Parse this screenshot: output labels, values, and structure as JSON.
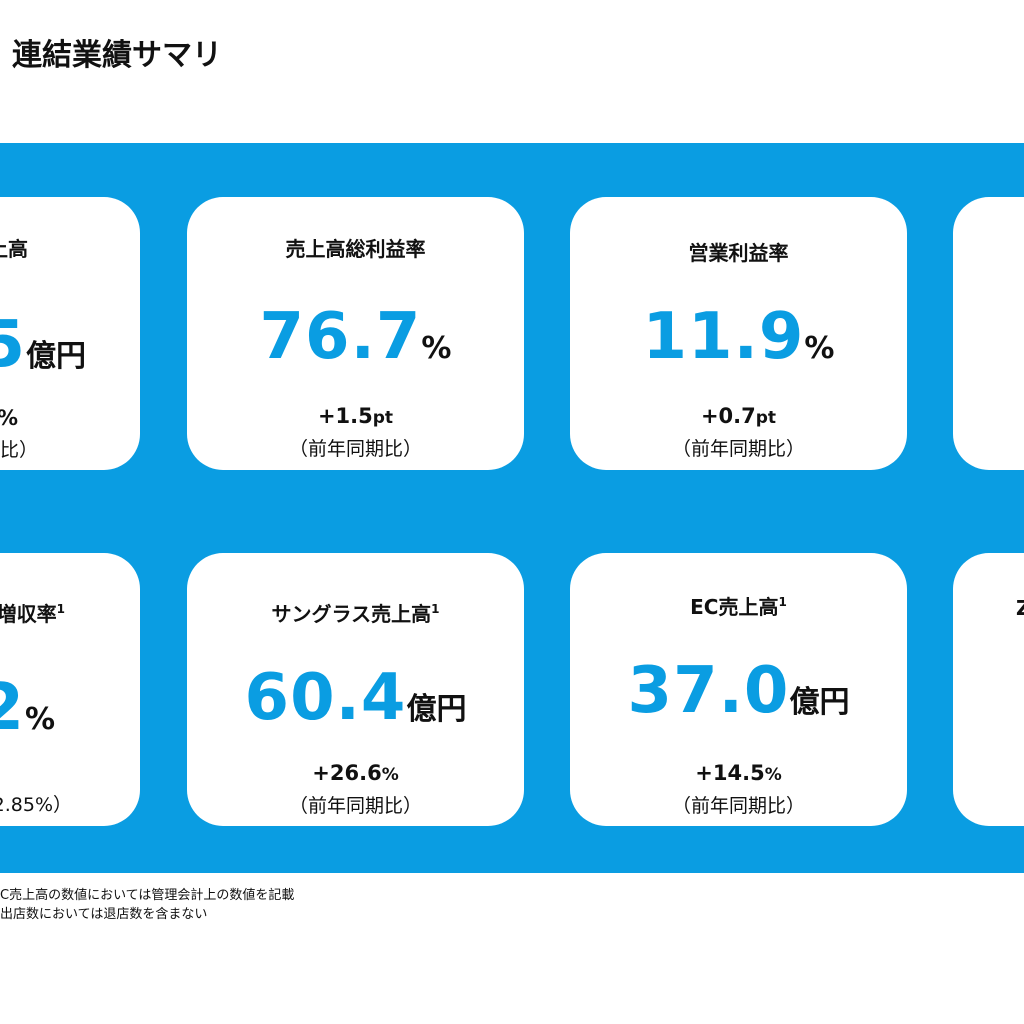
{
  "header": {
    "title": "連結業績サマリ"
  },
  "cards": [
    {
      "label": "上高",
      "value": "5",
      "unit": "億円",
      "change": "%",
      "note": "期比）"
    },
    {
      "label": "売上高総利益率",
      "value": "76.7",
      "unit": "%",
      "change": "+1.5",
      "change_unit": "pt",
      "note": "（前年同期比）"
    },
    {
      "label": "営業利益率",
      "value": "11.9",
      "unit": "%",
      "change": "+0.7",
      "change_unit": "pt",
      "note": "（前年同期比）"
    },
    {
      "label": "増収率",
      "sup": "1",
      "value": "2",
      "unit": "%",
      "note": "2.85%）"
    },
    {
      "label": "サングラス売上高",
      "sup": "1",
      "value": "60.4",
      "unit": "億円",
      "change": "+26.6",
      "change_unit": "%",
      "note": "（前年同期比）"
    },
    {
      "label": "EC売上高",
      "sup": "1",
      "value": "37.0",
      "unit": "億円",
      "change": "+14.5",
      "change_unit": "%",
      "note": "（前年同期比）"
    },
    {
      "label": "Z"
    }
  ],
  "footnotes": [
    "C売上高の数値においては管理会計上の数値を記載",
    "出店数においては退店数を含まない"
  ]
}
